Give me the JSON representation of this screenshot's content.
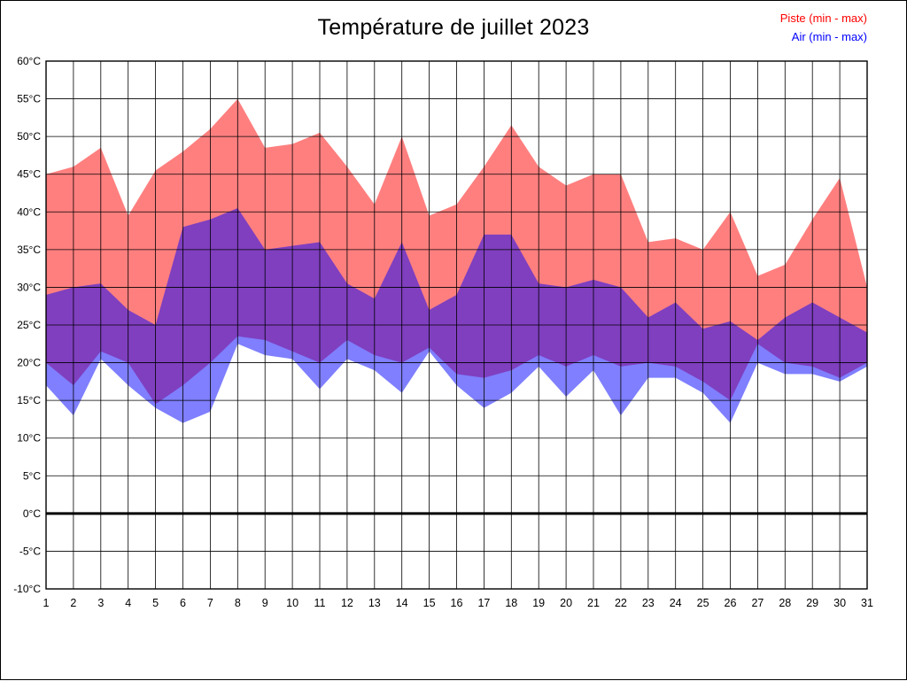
{
  "title": "Température de juillet 2023",
  "legend": [
    {
      "label": "Piste (min - max)",
      "color": "#ff0000"
    },
    {
      "label": "Air (min - max)",
      "color": "#0000ff"
    }
  ],
  "chart_data": {
    "type": "area",
    "title": "Température de juillet 2023",
    "xlabel": "",
    "ylabel": "",
    "x": [
      1,
      2,
      3,
      4,
      5,
      6,
      7,
      8,
      9,
      10,
      11,
      12,
      13,
      14,
      15,
      16,
      17,
      18,
      19,
      20,
      21,
      22,
      23,
      24,
      25,
      26,
      27,
      28,
      29,
      30,
      31
    ],
    "series": [
      {
        "name": "Piste",
        "legend_label": "Piste (min - max)",
        "color": "#ff0000",
        "fill_opacity": 0.5,
        "max": [
          45,
          46,
          48.5,
          39.5,
          45.5,
          48,
          51,
          55,
          48.5,
          49,
          50.5,
          46,
          41,
          50,
          39.5,
          41,
          46,
          51.5,
          46,
          43.5,
          45,
          45,
          36,
          36.5,
          35,
          40,
          31.5,
          33,
          39,
          44.5,
          30
        ],
        "min": [
          20,
          17,
          21.5,
          20,
          14.5,
          17,
          20,
          23.5,
          23,
          21.5,
          20,
          23,
          21,
          20,
          22,
          18.5,
          18,
          19,
          21,
          19.5,
          21,
          19.5,
          20,
          19.5,
          17.5,
          15,
          22.5,
          20,
          19.5,
          18,
          20
        ]
      },
      {
        "name": "Air",
        "legend_label": "Air (min - max)",
        "color": "#0000ff",
        "fill_opacity": 0.5,
        "max": [
          29,
          30,
          30.5,
          27,
          25,
          38,
          39,
          40.5,
          35,
          35.5,
          36,
          30.5,
          28.5,
          36,
          27,
          29,
          37,
          37,
          30.5,
          30,
          31,
          30,
          26,
          28,
          24.5,
          25.5,
          23,
          26,
          28,
          26,
          24
        ],
        "min": [
          17,
          13,
          20.5,
          17,
          14,
          12,
          13.5,
          22.5,
          21,
          20.5,
          16.5,
          20.5,
          19,
          16,
          21.5,
          17,
          14,
          16,
          19.5,
          15.5,
          19,
          13,
          18,
          18,
          16,
          12,
          20,
          18.5,
          18.5,
          17.5,
          19.5
        ]
      }
    ],
    "ylim": [
      -10,
      60
    ],
    "y_tick_step": 5,
    "y_tick_suffix": "°C",
    "grid": true,
    "zero_line": true,
    "legend_position": "top-right"
  }
}
